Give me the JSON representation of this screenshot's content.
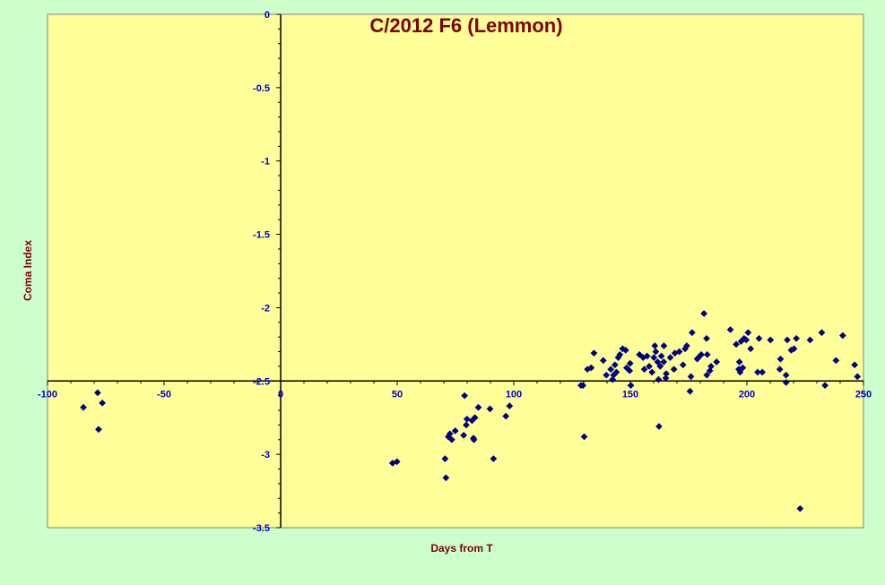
{
  "chart_data": {
    "type": "scatter",
    "title": "C/2012 F6 (Lemmon)",
    "xlabel": "Days from T",
    "ylabel": "Coma Index",
    "xlim": [
      -100,
      250
    ],
    "ylim": [
      -3.5,
      0
    ],
    "x_ticks": [
      -100,
      -50,
      0,
      50,
      100,
      150,
      200,
      250
    ],
    "y_ticks": [
      0,
      -0.5,
      -1,
      -1.5,
      -2,
      -2.5,
      -3,
      -3.5
    ],
    "x_tick_labels": [
      "-100",
      "-50",
      "0",
      "50",
      "100",
      "150",
      "200",
      "250"
    ],
    "y_tick_labels": [
      "0",
      "-0.5",
      "-1",
      "-1.5",
      "-2",
      "-2.5",
      "-3",
      "-3.5"
    ],
    "x_axis_crosses_y_at": -2.5,
    "y_axis_crosses_x_at": 0,
    "grid": false,
    "legend": "none",
    "colors": {
      "background": "#ccffcc",
      "plot_area": "#ffff99",
      "marker": "#000080",
      "title": "#800000",
      "tick_labels": "#0000cc"
    },
    "series": [
      {
        "marker": "diamond",
        "points": [
          [
            -84.6,
            -2.68
          ],
          [
            -78.5,
            -2.58
          ],
          [
            -76.5,
            -2.65
          ],
          [
            -78.1,
            -2.83
          ],
          [
            48.0,
            -3.06
          ],
          [
            49.9,
            -3.05
          ],
          [
            70.5,
            -3.03
          ],
          [
            70.9,
            -3.16
          ],
          [
            71.9,
            -2.88
          ],
          [
            72.6,
            -2.86
          ],
          [
            73.4,
            -2.9
          ],
          [
            74.9,
            -2.84
          ],
          [
            78.5,
            -2.87
          ],
          [
            78.9,
            -2.6
          ],
          [
            79.6,
            -2.8
          ],
          [
            79.9,
            -2.76
          ],
          [
            82.1,
            -2.77
          ],
          [
            82.7,
            -2.89
          ],
          [
            82.9,
            -2.9
          ],
          [
            83.3,
            -2.75
          ],
          [
            84.8,
            -2.68
          ],
          [
            89.8,
            -2.69
          ],
          [
            91.3,
            -3.03
          ],
          [
            96.6,
            -2.74
          ],
          [
            98.2,
            -2.67
          ],
          [
            128.8,
            -2.53
          ],
          [
            129.7,
            -2.53
          ],
          [
            130.2,
            -2.88
          ],
          [
            131.6,
            -2.42
          ],
          [
            133.2,
            -2.41
          ],
          [
            134.4,
            -2.31
          ],
          [
            138.4,
            -2.36
          ],
          [
            139.7,
            -2.46
          ],
          [
            141.6,
            -2.42
          ],
          [
            142.4,
            -2.49
          ],
          [
            142.8,
            -2.46
          ],
          [
            143.4,
            -2.39
          ],
          [
            144.0,
            -2.44
          ],
          [
            144.8,
            -2.34
          ],
          [
            145.5,
            -2.32
          ],
          [
            146.7,
            -2.28
          ],
          [
            148.0,
            -2.29
          ],
          [
            148.4,
            -2.41
          ],
          [
            149.7,
            -2.43
          ],
          [
            150.2,
            -2.53
          ],
          [
            149.9,
            -2.38
          ],
          [
            153.9,
            -2.32
          ],
          [
            155.5,
            -2.34
          ],
          [
            156.0,
            -2.42
          ],
          [
            157.2,
            -2.33
          ],
          [
            158.1,
            -2.4
          ],
          [
            159.3,
            -2.44
          ],
          [
            160.1,
            -2.34
          ],
          [
            160.5,
            -2.26
          ],
          [
            160.9,
            -2.3
          ],
          [
            161.7,
            -2.37
          ],
          [
            162.1,
            -2.49
          ],
          [
            162.3,
            -2.81
          ],
          [
            162.8,
            -2.4
          ],
          [
            163.3,
            -2.33
          ],
          [
            164.4,
            -2.26
          ],
          [
            164.3,
            -2.37
          ],
          [
            165.2,
            -2.48
          ],
          [
            165.4,
            -2.45
          ],
          [
            167.1,
            -2.34
          ],
          [
            168.7,
            -2.42
          ],
          [
            169.1,
            -2.31
          ],
          [
            171.0,
            -2.3
          ],
          [
            172.6,
            -2.39
          ],
          [
            173.5,
            -2.28
          ],
          [
            174.2,
            -2.26
          ],
          [
            175.6,
            -2.57
          ],
          [
            176.0,
            -2.47
          ],
          [
            176.5,
            -2.17
          ],
          [
            178.7,
            -2.35
          ],
          [
            179.2,
            -2.34
          ],
          [
            180.4,
            -2.32
          ],
          [
            181.6,
            -2.04
          ],
          [
            182.7,
            -2.21
          ],
          [
            182.8,
            -2.46
          ],
          [
            183.0,
            -2.32
          ],
          [
            184.1,
            -2.43
          ],
          [
            184.6,
            -2.4
          ],
          [
            187.0,
            -2.37
          ],
          [
            192.9,
            -2.15
          ],
          [
            195.4,
            -2.25
          ],
          [
            196.5,
            -2.42
          ],
          [
            196.8,
            -2.37
          ],
          [
            197.1,
            -2.44
          ],
          [
            197.5,
            -2.23
          ],
          [
            198.2,
            -2.41
          ],
          [
            198.8,
            -2.21
          ],
          [
            199.7,
            -2.22
          ],
          [
            200.5,
            -2.17
          ],
          [
            201.6,
            -2.28
          ],
          [
            204.6,
            -2.44
          ],
          [
            205.2,
            -2.21
          ],
          [
            206.6,
            -2.44
          ],
          [
            210.1,
            -2.22
          ],
          [
            214.1,
            -2.42
          ],
          [
            214.4,
            -2.35
          ],
          [
            216.8,
            -2.46
          ],
          [
            216.8,
            -2.51
          ],
          [
            217.3,
            -2.22
          ],
          [
            219.0,
            -2.29
          ],
          [
            220.2,
            -2.28
          ],
          [
            221.2,
            -2.21
          ],
          [
            222.8,
            -3.37
          ],
          [
            227.1,
            -2.22
          ],
          [
            232.1,
            -2.17
          ],
          [
            233.5,
            -2.53
          ],
          [
            238.2,
            -2.36
          ],
          [
            241.1,
            -2.19
          ],
          [
            246.2,
            -2.39
          ],
          [
            247.4,
            -2.47
          ]
        ]
      }
    ]
  }
}
